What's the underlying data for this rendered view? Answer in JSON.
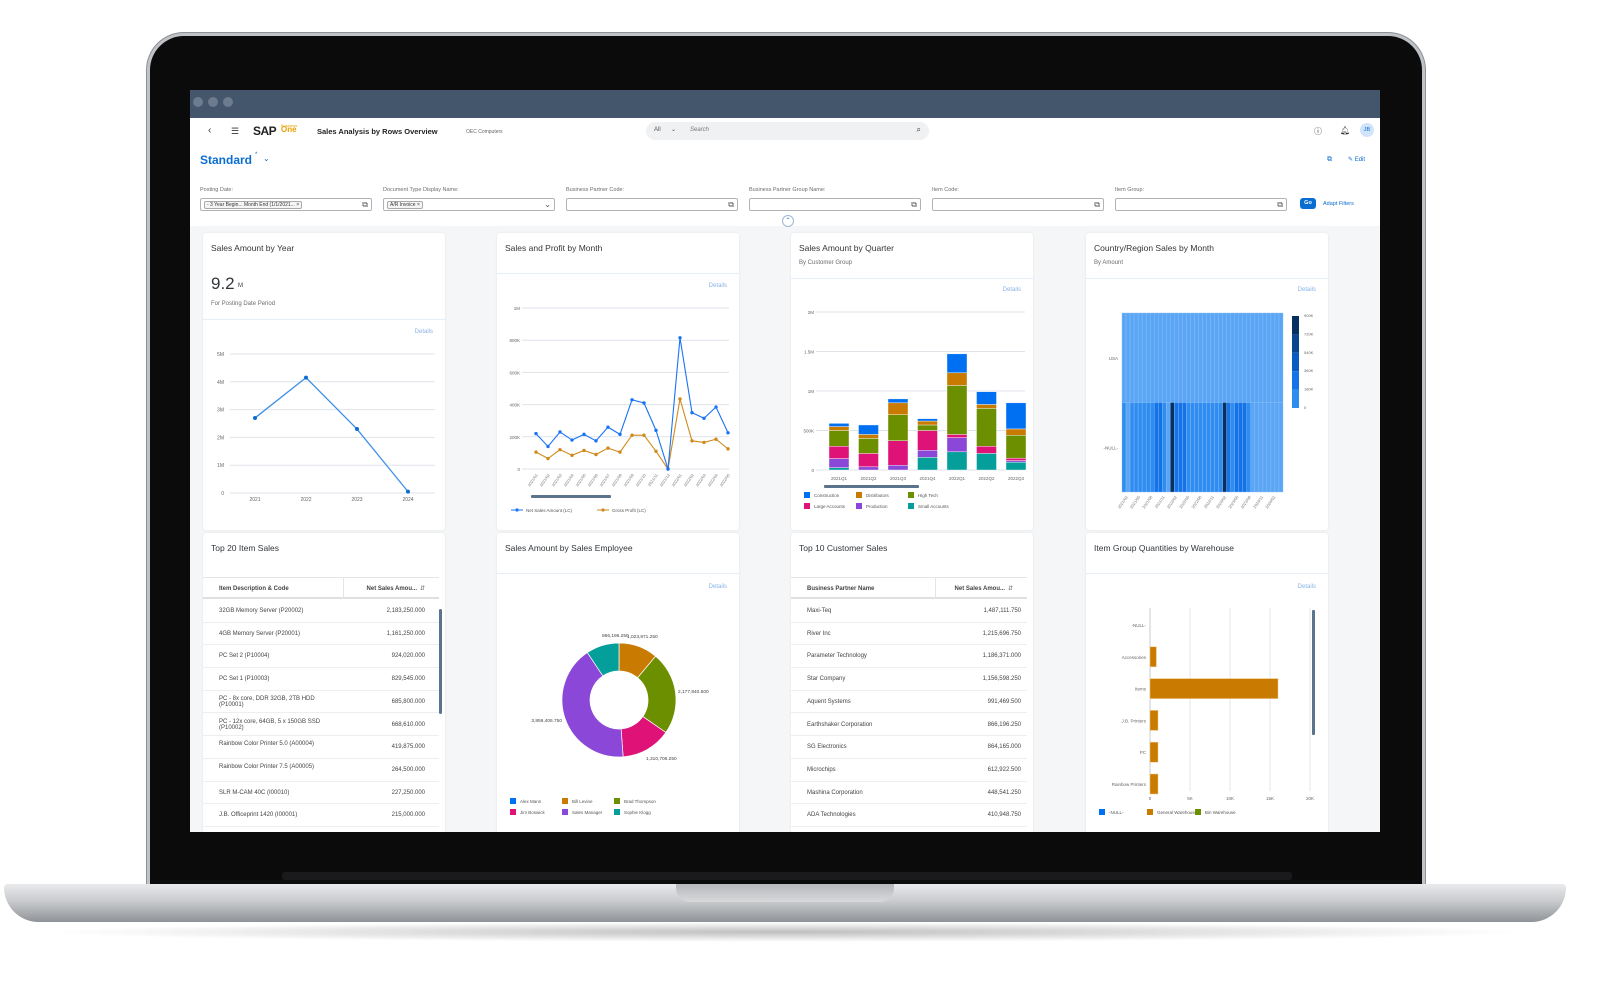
{
  "shell": {
    "app_title": "Sales Analysis by Rows Overview",
    "company": "OEC Computers",
    "logo_text": "SAP Business One",
    "search_scope": "All",
    "search_placeholder": "Search",
    "avatar_initials": "JB",
    "icons": [
      "back-icon",
      "menu-icon",
      "search-icon",
      "help-icon",
      "bell-icon"
    ]
  },
  "page": {
    "variant": "Standard",
    "variant_modified": "*",
    "edit_label": "Edit",
    "go_label": "Go",
    "adapt_filters_label": "Adapt Filters"
  },
  "filters": [
    {
      "label": "Posting Date:",
      "token": "- 3 Year Begin... Month End (1/1/2021...",
      "help": "value-help"
    },
    {
      "label": "Document Type Display Name:",
      "token": "A/R Invoice",
      "help": "dropdown"
    },
    {
      "label": "Business Partner Code:",
      "token": "",
      "help": "value-help"
    },
    {
      "label": "Business Partner Group Name:",
      "token": "",
      "help": "value-help"
    },
    {
      "label": "Item Code:",
      "token": "",
      "help": "value-help"
    },
    {
      "label": "Item Group:",
      "token": "",
      "help": "value-help"
    }
  ],
  "cards": {
    "details_label": "Details",
    "sales_by_year": {
      "title": "Sales Amount by Year",
      "kpi_value": "9.2",
      "kpi_unit": "M",
      "kpi_subtitle": "For Posting Date Period"
    },
    "sales_profit_month": {
      "title": "Sales and Profit by Month"
    },
    "sales_by_quarter": {
      "title": "Sales Amount by Quarter",
      "subtitle": "By Customer Group"
    },
    "country_sales": {
      "title": "Country/Region Sales by Month",
      "subtitle": "By Amount"
    },
    "top_items": {
      "title": "Top 20 Item Sales",
      "columns": [
        "Item Description & Code",
        "Net Sales Amou..."
      ],
      "rows": [
        [
          "32GB Memory Server (P20002)",
          "2,183,250.000"
        ],
        [
          "4GB Memory Server (P20001)",
          "1,161,250.000"
        ],
        [
          "PC Set 2 (P10004)",
          "924,020.000"
        ],
        [
          "PC Set 1 (P10003)",
          "829,545.000"
        ],
        [
          "PC - 8x core, DDR 32GB, 2TB HDD (P10001)",
          "685,800.000"
        ],
        [
          "PC - 12x core, 64GB, 5 x 150GB SSD (P10002)",
          "668,610.000"
        ],
        [
          "Rainbow Color Printer 5.0 (A00004)",
          "419,875.000"
        ],
        [
          "Rainbow Color Printer 7.5 (A00005)",
          "264,500.000"
        ],
        [
          "SLR M-CAM 40C (I00010)",
          "227,250.000"
        ],
        [
          "J.B. Officeprint 1420 (I00001)",
          "215,000.000"
        ]
      ]
    },
    "sales_employee": {
      "title": "Sales Amount by Sales Employee"
    },
    "top_customers": {
      "title": "Top 10 Customer Sales",
      "columns": [
        "Business Partner Name",
        "Net Sales Amou..."
      ],
      "rows": [
        [
          "Maxi-Teq",
          "1,487,111.750"
        ],
        [
          "River Inc",
          "1,215,696.750"
        ],
        [
          "Parameter Technology",
          "1,186,371.000"
        ],
        [
          "Star Company",
          "1,156,598.250"
        ],
        [
          "Aquent Systems",
          "991,469.500"
        ],
        [
          "Earthshaker Corporation",
          "866,196.250"
        ],
        [
          "SG Electronics",
          "864,165.000"
        ],
        [
          "Microchips",
          "612,922.500"
        ],
        [
          "Mashina Corporation",
          "448,541.250"
        ],
        [
          "ADA Technologies",
          "410,948.750"
        ]
      ]
    },
    "warehouse_qty": {
      "title": "Item Group Quantities by Warehouse"
    }
  },
  "colors": {
    "accent": "#0a6ed1",
    "shell": "#44566c",
    "blue": "#0070f2",
    "orange": "#c87b00",
    "green": "#6c8f00",
    "pink": "#df1278",
    "purple": "#8b47d7",
    "teal": "#049f9a"
  },
  "chart_data": [
    {
      "type": "line",
      "title": "Sales Amount by Year",
      "categories": [
        "2021",
        "2022",
        "2023",
        "2024"
      ],
      "y_ticks": [
        "0",
        "1M",
        "2M",
        "3M",
        "4M",
        "5M"
      ],
      "ylim": [
        0,
        5000000
      ],
      "series": [
        {
          "values": [
            2700000,
            4150000,
            2300000,
            50000
          ]
        }
      ],
      "grid": true
    },
    {
      "type": "line",
      "title": "Sales and Profit by Month",
      "categories": [
        "2021/01",
        "2021/02",
        "2021/03",
        "2021/04",
        "2021/05",
        "2021/06",
        "2021/07",
        "2021/08",
        "2021/09",
        "2021/10",
        "2021/11",
        "2021/12",
        "2022/01",
        "2022/02",
        "2022/03",
        "2022/04",
        "2022/05"
      ],
      "y_ticks": [
        "0",
        "200K",
        "400K",
        "600K",
        "800K",
        "1M"
      ],
      "ylim": [
        0,
        1000000
      ],
      "series": [
        {
          "name": "Net Sales Amount (LC)",
          "color": "#1873f5",
          "values": [
            220000,
            140000,
            230000,
            180000,
            215000,
            175000,
            260000,
            215000,
            430000,
            410000,
            240000,
            0,
            815000,
            350000,
            315000,
            385000,
            225000
          ]
        },
        {
          "name": "Gross Profit (LC)",
          "color": "#d08a1c",
          "values": [
            105000,
            65000,
            120000,
            85000,
            115000,
            90000,
            130000,
            105000,
            210000,
            210000,
            110000,
            0,
            435000,
            175000,
            165000,
            185000,
            125000
          ]
        }
      ],
      "legend": "bottom",
      "grid": true
    },
    {
      "type": "bar",
      "stacked": true,
      "title": "Sales Amount by Quarter",
      "categories": [
        "2021Q1",
        "2021Q2",
        "2021Q3",
        "2021Q4",
        "2022Q1",
        "2022Q2",
        "2022Q3"
      ],
      "y_ticks": [
        "0",
        "500K",
        "1M",
        "1.5M",
        "2M"
      ],
      "ylim": [
        0,
        2000000
      ],
      "series": [
        {
          "name": "Small Accounts",
          "color": "#049f9a",
          "values": [
            30000,
            0,
            0,
            160000,
            230000,
            210000,
            100000
          ]
        },
        {
          "name": "Production",
          "color": "#8b47d7",
          "values": [
            115000,
            40000,
            60000,
            90000,
            180000,
            0,
            20000
          ]
        },
        {
          "name": "Large Accounts",
          "color": "#df1278",
          "values": [
            155000,
            170000,
            310000,
            250000,
            40000,
            90000,
            30000
          ]
        },
        {
          "name": "High Tech",
          "color": "#6c8f00",
          "values": [
            200000,
            190000,
            330000,
            70000,
            620000,
            480000,
            290000
          ]
        },
        {
          "name": "Distributors",
          "color": "#c87b00",
          "values": [
            50000,
            50000,
            150000,
            50000,
            160000,
            50000,
            80000
          ]
        },
        {
          "name": "Construction",
          "color": "#0070f2",
          "values": [
            40000,
            120000,
            50000,
            30000,
            240000,
            160000,
            330000
          ]
        }
      ],
      "legend_order": [
        "Construction",
        "Distributors",
        "High Tech",
        "Large Accounts",
        "Production",
        "Small Accounts"
      ],
      "legend": "bottom",
      "grid": true
    },
    {
      "type": "heatmap",
      "title": "Country/Region Sales by Month",
      "rows": [
        "USA",
        "-NULL-"
      ],
      "x_tick_labels": [
        "2021/02",
        "2021/05",
        "2021/08",
        "2021/11",
        "2022/02",
        "2022/05",
        "2022/08",
        "2022/11",
        "2023/02",
        "2023/05",
        "2023/08",
        "2023/11",
        "2024/02"
      ],
      "scale_ticks": [
        "0",
        "180K",
        "360K",
        "540K",
        "720K",
        "900K"
      ],
      "range": [
        0,
        900000
      ],
      "values": [
        [
          10000,
          10000,
          10000,
          10000,
          10000,
          10000,
          10000,
          10000,
          10000,
          10000,
          10000,
          10000,
          10000,
          10000,
          10000,
          10000,
          10000,
          10000,
          10000,
          10000,
          10000,
          10000,
          10000,
          10000,
          10000,
          10000,
          10000,
          10000,
          10000,
          10000,
          10000,
          10000,
          10000,
          10000,
          10000,
          10000,
          10000,
          10000,
          10000,
          10000
        ],
        [
          220000,
          140000,
          230000,
          180000,
          215000,
          175000,
          260000,
          215000,
          430000,
          410000,
          240000,
          0,
          815000,
          350000,
          315000,
          385000,
          225000,
          200000,
          260000,
          240000,
          230000,
          280000,
          190000,
          250000,
          150000,
          820000,
          300000,
          270000,
          350000,
          300000,
          310000,
          260000,
          120000,
          110000,
          120000,
          100000,
          110000,
          130000,
          100000,
          80000
        ]
      ],
      "legend": "right"
    },
    {
      "type": "pie",
      "donut": true,
      "title": "Sales Amount by Sales Employee",
      "categories": [
        "Alex Mann",
        "Bill Levine",
        "Brad Thompson",
        "Jim Boswick",
        "Sales Manager",
        "Sophie Klogg"
      ],
      "values": [
        0,
        1023871.25,
        2177840.5,
        1310706.25,
        3859406.75,
        866196.25
      ],
      "data_labels": [
        "",
        "1,023,871.250",
        "2,177,840.500",
        "1,310,706.250",
        "3,859,406.750",
        "866,196.250"
      ],
      "colors": [
        "#0070f2",
        "#c87b00",
        "#6c8f00",
        "#df1278",
        "#8b47d7",
        "#049f9a"
      ],
      "legend": "bottom"
    },
    {
      "type": "bar",
      "orientation": "horizontal",
      "title": "Item Group Quantities by Warehouse",
      "categories": [
        "-NULL-",
        "Accessories",
        "Items",
        "J.B. Printers",
        "PC",
        "Rainbow Printers"
      ],
      "x_ticks": [
        "0",
        "5K",
        "10K",
        "15K",
        "20K"
      ],
      "xlim": [
        0,
        20000
      ],
      "series": [
        {
          "name": "-NULL-",
          "color": "#0070f2",
          "values": [
            0,
            0,
            0,
            0,
            0,
            0
          ]
        },
        {
          "name": "General Warehouse",
          "color": "#c87b00",
          "values": [
            0,
            800,
            16000,
            1000,
            1000,
            1000
          ]
        },
        {
          "name": "Bin Warehouse",
          "color": "#6c8f00",
          "values": [
            0,
            0,
            0,
            0,
            0,
            0
          ]
        }
      ],
      "legend": "bottom",
      "grid": true
    }
  ]
}
